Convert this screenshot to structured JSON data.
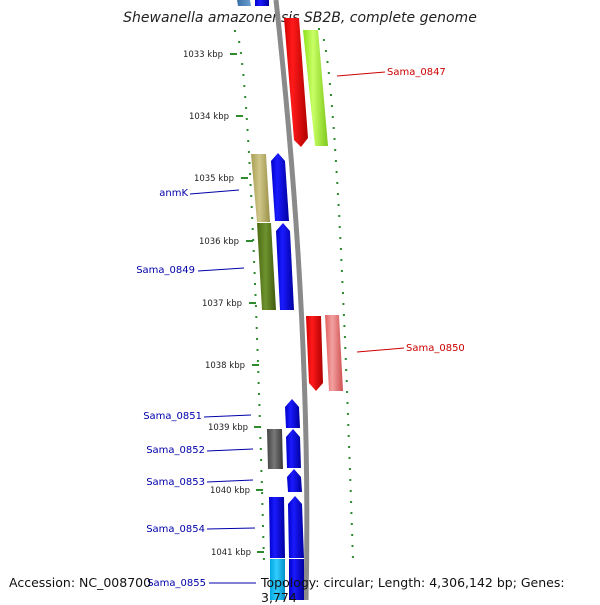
{
  "header": {
    "title": "Shewanella amazonensis SB2B, complete genome"
  },
  "footer": {
    "accession": "Accession: NC_008700",
    "summary": "Topology: circular; Length: 4,306,142 bp; Genes: 3,774"
  },
  "ruler": {
    "color": "#2e8b2e",
    "ticks": [
      "1033 kbp",
      "1034 kbp",
      "1035 kbp",
      "1036 kbp",
      "1037 kbp",
      "1038 kbp",
      "1039 kbp",
      "1040 kbp",
      "1041 kbp"
    ]
  },
  "genes": [
    {
      "label": "Sama_0847",
      "color": "#cc0000"
    },
    {
      "label": "anmK",
      "color": "#0000aa"
    },
    {
      "label": "Sama_0849",
      "color": "#0000aa"
    },
    {
      "label": "Sama_0850",
      "color": "#cc0000"
    },
    {
      "label": "Sama_0851",
      "color": "#0000aa"
    },
    {
      "label": "Sama_0852",
      "color": "#0000aa"
    },
    {
      "label": "Sama_0853",
      "color": "#0000aa"
    },
    {
      "label": "Sama_0854",
      "color": "#0000aa"
    },
    {
      "label": "Sama_0855",
      "color": "#0000aa"
    }
  ]
}
